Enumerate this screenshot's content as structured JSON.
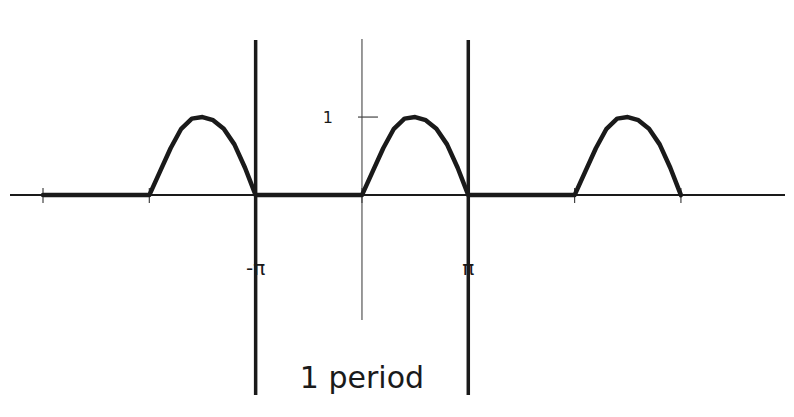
{
  "chart_data": {
    "type": "line",
    "x": [
      -9.4248,
      -6.2832,
      -5.969,
      -5.6549,
      -5.3407,
      -5.0265,
      -4.7124,
      -4.3982,
      -4.084,
      -3.7699,
      -3.4557,
      -3.1416,
      0,
      0.3142,
      0.6283,
      0.9425,
      1.2566,
      1.5708,
      1.885,
      2.1991,
      2.5133,
      2.8274,
      3.1416,
      6.2832,
      6.5973,
      6.9115,
      7.2257,
      7.5398,
      7.854,
      8.1681,
      8.4823,
      8.7965,
      9.1106,
      9.4248
    ],
    "values": [
      0,
      0,
      0.3,
      0.6,
      0.85,
      0.98,
      1.0,
      0.96,
      0.85,
      0.65,
      0.35,
      0,
      0,
      0.3,
      0.6,
      0.85,
      0.98,
      1.0,
      0.96,
      0.85,
      0.65,
      0.35,
      0,
      0,
      0.3,
      0.6,
      0.85,
      0.98,
      1.0,
      0.96,
      0.85,
      0.65,
      0.35,
      0
    ],
    "color": "#1a1a1a",
    "xlim": [
      -10.4,
      12.5
    ],
    "ylim": [
      -1.6,
      2.0
    ],
    "xticks": [
      {
        "value": -9.4248,
        "label": null
      },
      {
        "value": -6.2832,
        "label": null
      },
      {
        "value": -3.1416,
        "label": "-π"
      },
      {
        "value": 0,
        "label": null
      },
      {
        "value": 3.1416,
        "label": "π"
      },
      {
        "value": 6.2832,
        "label": null
      },
      {
        "value": 9.4248,
        "label": null
      }
    ],
    "yticks": [
      1
    ],
    "annotations": [
      {
        "text": "1 period"
      }
    ],
    "grid": false
  }
}
